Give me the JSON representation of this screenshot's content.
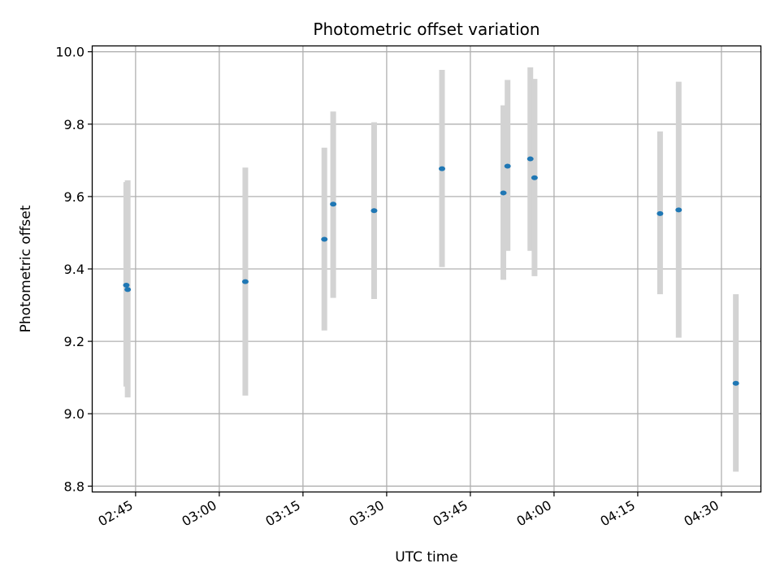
{
  "chart_data": {
    "type": "scatter",
    "title": "Photometric offset variation",
    "xlabel": "UTC time",
    "ylabel": "Photometric offset",
    "x_tick_labels": [
      "02:45",
      "03:00",
      "03:15",
      "03:30",
      "03:45",
      "04:00",
      "04:15",
      "04:30"
    ],
    "x_ticks_minutes": [
      165,
      180,
      195,
      210,
      225,
      240,
      255,
      270
    ],
    "y_tick_labels": [
      "8.8",
      "9.0",
      "9.2",
      "9.4",
      "9.6",
      "9.8",
      "10.0"
    ],
    "y_ticks": [
      8.8,
      9.0,
      9.2,
      9.4,
      9.6,
      9.8,
      10.0
    ],
    "xlim_minutes": [
      157.3,
      277.0
    ],
    "ylim": [
      8.785,
      10.015
    ],
    "grid": true,
    "marker_color": "#1f77b4",
    "errorbar_color": "#d3d3d3",
    "points": [
      {
        "time": "02:43:20",
        "y": 9.355,
        "ylow": 9.075,
        "yhigh": 9.64
      },
      {
        "time": "02:43:35",
        "y": 9.343,
        "ylow": 9.045,
        "yhigh": 9.645
      },
      {
        "time": "03:04:40",
        "y": 9.365,
        "ylow": 9.05,
        "yhigh": 9.68
      },
      {
        "time": "03:18:50",
        "y": 9.482,
        "ylow": 9.23,
        "yhigh": 9.735
      },
      {
        "time": "03:20:25",
        "y": 9.579,
        "ylow": 9.32,
        "yhigh": 9.835
      },
      {
        "time": "03:27:45",
        "y": 9.561,
        "ylow": 9.317,
        "yhigh": 9.805
      },
      {
        "time": "03:39:55",
        "y": 9.677,
        "ylow": 9.405,
        "yhigh": 9.95
      },
      {
        "time": "03:50:55",
        "y": 9.61,
        "ylow": 9.37,
        "yhigh": 9.852
      },
      {
        "time": "03:51:40",
        "y": 9.684,
        "ylow": 9.45,
        "yhigh": 9.922
      },
      {
        "time": "03:55:45",
        "y": 9.704,
        "ylow": 9.45,
        "yhigh": 9.957
      },
      {
        "time": "03:56:30",
        "y": 9.652,
        "ylow": 9.38,
        "yhigh": 9.925
      },
      {
        "time": "04:19:00",
        "y": 9.553,
        "ylow": 9.33,
        "yhigh": 9.78
      },
      {
        "time": "04:22:20",
        "y": 9.563,
        "ylow": 9.21,
        "yhigh": 9.917
      },
      {
        "time": "04:32:35",
        "y": 9.084,
        "ylow": 8.84,
        "yhigh": 9.33
      }
    ]
  }
}
